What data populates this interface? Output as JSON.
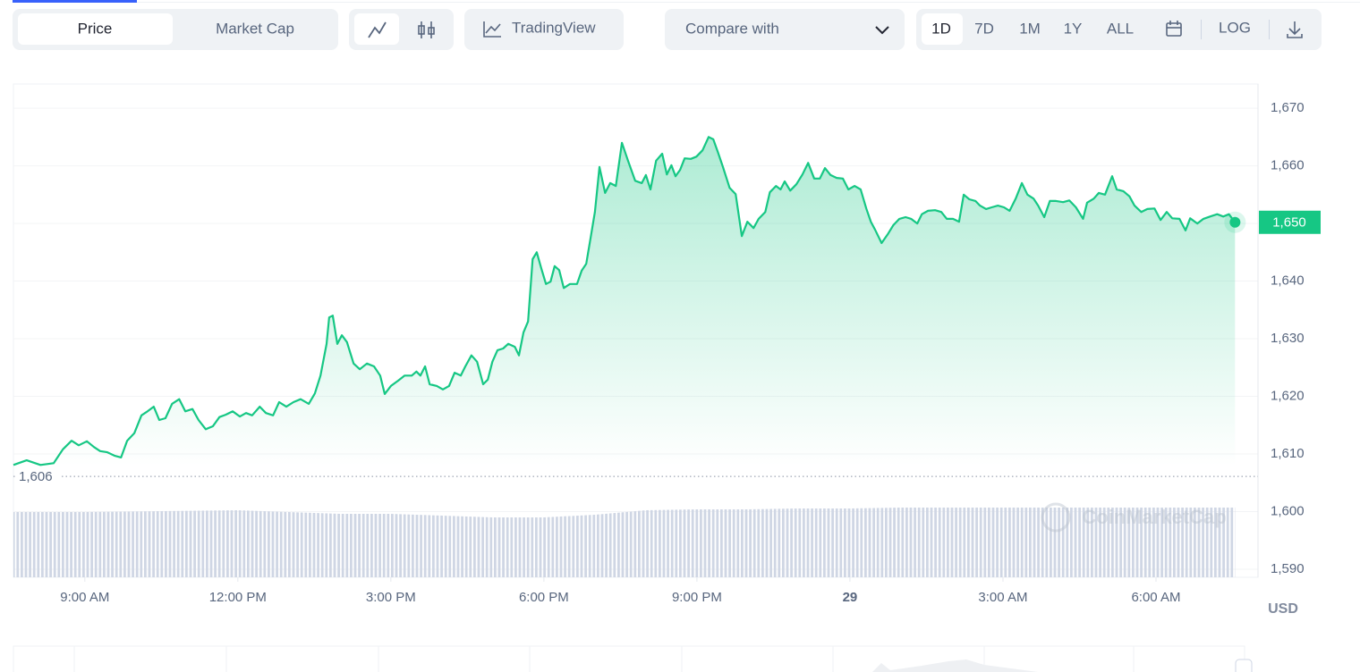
{
  "toolbar": {
    "tabs": [
      "Price",
      "Market Cap"
    ],
    "tradingview": "TradingView",
    "compare": "Compare with",
    "ranges": [
      "1D",
      "7D",
      "1M",
      "1Y",
      "ALL"
    ],
    "log": "LOG"
  },
  "chart_data": {
    "type": "area",
    "color": "#16c784",
    "watermark": "CoinMarketCap",
    "unit": "USD",
    "x": [
      7.6,
      7.86,
      8.13,
      8.39,
      8.57,
      8.74,
      8.88,
      9.04,
      9.18,
      9.3,
      9.44,
      9.58,
      9.71,
      9.83,
      9.97,
      10.11,
      10.23,
      10.35,
      10.46,
      10.58,
      10.71,
      10.85,
      10.97,
      11.11,
      11.23,
      11.37,
      11.51,
      11.64,
      11.76,
      11.9,
      12.04,
      12.16,
      12.28,
      12.43,
      12.55,
      12.69,
      12.81,
      12.95,
      13.09,
      13.23,
      13.39,
      13.51,
      13.62,
      13.74,
      13.79,
      13.86,
      13.95,
      14.04,
      14.14,
      14.27,
      14.39,
      14.53,
      14.67,
      14.79,
      14.88,
      15.0,
      15.14,
      15.27,
      15.41,
      15.5,
      15.58,
      15.67,
      15.76,
      15.9,
      16.02,
      16.14,
      16.25,
      16.37,
      16.46,
      16.58,
      16.69,
      16.81,
      16.9,
      16.99,
      17.09,
      17.2,
      17.3,
      17.43,
      17.51,
      17.6,
      17.69,
      17.78,
      17.86,
      17.95,
      18.04,
      18.13,
      18.21,
      18.3,
      18.39,
      18.51,
      18.65,
      18.74,
      18.83,
      18.92,
      19.0,
      19.09,
      19.2,
      19.3,
      19.41,
      19.53,
      19.65,
      19.79,
      19.92,
      20.0,
      20.09,
      20.2,
      20.32,
      20.41,
      20.5,
      20.58,
      20.67,
      20.76,
      20.88,
      20.99,
      21.11,
      21.23,
      21.32,
      21.41,
      21.51,
      21.64,
      21.76,
      21.88,
      21.99,
      22.11,
      22.21,
      22.34,
      22.43,
      22.55,
      22.64,
      22.72,
      22.83,
      22.95,
      23.07,
      23.18,
      23.3,
      23.41,
      23.51,
      23.62,
      23.74,
      23.86,
      23.97,
      24.09,
      24.21,
      24.32,
      24.41,
      24.5,
      24.62,
      24.74,
      24.85,
      24.97,
      25.09,
      25.2,
      25.32,
      25.41,
      25.53,
      25.67,
      25.79,
      25.9,
      26.02,
      26.14,
      26.23,
      26.34,
      26.46,
      26.55,
      26.67,
      26.78,
      26.9,
      27.02,
      27.13,
      27.25,
      27.37,
      27.48,
      27.6,
      27.69,
      27.81,
      27.92,
      28.04,
      28.18,
      28.3,
      28.43,
      28.57,
      28.65,
      28.78,
      28.88,
      29.0,
      29.14,
      29.23,
      29.36,
      29.48,
      29.58,
      29.71,
      29.83,
      29.97,
      30.09,
      30.21,
      30.32,
      30.46,
      30.58,
      30.67,
      30.81,
      30.93,
      31.06,
      31.2,
      31.32,
      31.43,
      31.55
    ],
    "values": [
      1608.1,
      1608.9,
      1608.1,
      1608.4,
      1610.8,
      1612.3,
      1611.5,
      1612.2,
      1611.2,
      1610.5,
      1610.3,
      1609.7,
      1609.4,
      1612.3,
      1613.6,
      1616.7,
      1617.4,
      1618.2,
      1615.9,
      1616.2,
      1618.7,
      1619.5,
      1617.4,
      1617.8,
      1615.9,
      1614.3,
      1614.8,
      1616.4,
      1616.8,
      1617.4,
      1616.5,
      1617.1,
      1616.7,
      1618.2,
      1617.1,
      1616.7,
      1619.0,
      1618.2,
      1619.0,
      1619.5,
      1618.7,
      1620.5,
      1623.6,
      1629.1,
      1633.7,
      1634.0,
      1629.1,
      1630.6,
      1629.4,
      1625.7,
      1624.7,
      1625.7,
      1625.2,
      1623.6,
      1620.4,
      1621.8,
      1622.7,
      1623.6,
      1623.6,
      1624.3,
      1623.6,
      1625.2,
      1622.1,
      1621.8,
      1621.2,
      1621.8,
      1624.1,
      1623.6,
      1625.2,
      1627.1,
      1626.0,
      1622.1,
      1622.9,
      1626.0,
      1628.0,
      1628.3,
      1629.1,
      1628.6,
      1627.1,
      1631.1,
      1633.0,
      1643.8,
      1645.0,
      1642.2,
      1639.5,
      1639.9,
      1642.6,
      1641.9,
      1638.8,
      1639.5,
      1639.5,
      1641.8,
      1643.0,
      1647.7,
      1652.0,
      1659.8,
      1655.3,
      1657.0,
      1656.5,
      1664.0,
      1660.9,
      1657.4,
      1657.0,
      1658.4,
      1655.9,
      1660.9,
      1662.1,
      1658.5,
      1660.1,
      1658.2,
      1659.3,
      1661.3,
      1661.2,
      1661.6,
      1662.7,
      1665.0,
      1664.6,
      1662.4,
      1659.8,
      1656.2,
      1655.1,
      1647.8,
      1650.3,
      1649.2,
      1650.8,
      1652.0,
      1655.4,
      1656.5,
      1655.9,
      1657.3,
      1655.7,
      1656.8,
      1658.5,
      1660.5,
      1657.8,
      1657.8,
      1659.6,
      1658.4,
      1657.9,
      1657.8,
      1655.9,
      1656.5,
      1655.9,
      1652.6,
      1650.3,
      1648.8,
      1646.6,
      1648.1,
      1649.7,
      1650.8,
      1651.1,
      1650.8,
      1650.0,
      1651.6,
      1652.2,
      1652.3,
      1652.0,
      1650.8,
      1650.8,
      1650.3,
      1655.0,
      1654.2,
      1653.9,
      1653.1,
      1652.5,
      1652.8,
      1653.1,
      1652.8,
      1652.2,
      1654.3,
      1657.0,
      1655.0,
      1654.3,
      1653.1,
      1651.1,
      1653.9,
      1653.9,
      1653.7,
      1654.0,
      1652.8,
      1650.8,
      1653.6,
      1654.3,
      1655.3,
      1655.0,
      1658.2,
      1655.9,
      1655.6,
      1654.7,
      1653.1,
      1652.0,
      1652.5,
      1652.6,
      1650.6,
      1652.0,
      1650.9,
      1650.8,
      1648.8,
      1650.9,
      1650.0,
      1650.8,
      1651.2,
      1651.6,
      1651.2,
      1651.6,
      1650.2
    ],
    "current_price": {
      "value": 1650.2,
      "label": "1,650"
    },
    "reference_line": {
      "value": 1606.1,
      "label": "1,606"
    },
    "volume": {
      "color": "#cfd6e4",
      "x": [
        7.6,
        9,
        10.5,
        12,
        13,
        14,
        15,
        16,
        17,
        18,
        19,
        20,
        21,
        22,
        23,
        24,
        25,
        26,
        27,
        28,
        29,
        30,
        31,
        31.55
      ],
      "values": [
        73,
        73,
        74,
        75,
        73,
        71,
        71,
        69,
        67,
        67,
        70,
        75,
        76,
        76,
        77,
        77,
        78,
        78,
        78,
        78,
        78,
        78,
        78,
        78
      ]
    },
    "xlim": [
      7.6,
      32.0
    ],
    "xticks": [
      {
        "value": 9,
        "label": "9:00 AM"
      },
      {
        "value": 12,
        "label": "12:00 PM"
      },
      {
        "value": 15,
        "label": "3:00 PM"
      },
      {
        "value": 18,
        "label": "6:00 PM"
      },
      {
        "value": 21,
        "label": "9:00 PM"
      },
      {
        "value": 24,
        "label": "29",
        "bold": true
      },
      {
        "value": 27,
        "label": "3:00 AM"
      },
      {
        "value": 30,
        "label": "6:00 AM"
      }
    ],
    "ylim": [
      1588.6,
      1674.2
    ],
    "yticks": [
      {
        "value": 1590,
        "label": "1,590"
      },
      {
        "value": 1600,
        "label": "1,600"
      },
      {
        "value": 1610,
        "label": "1,610"
      },
      {
        "value": 1620,
        "label": "1,620"
      },
      {
        "value": 1630,
        "label": "1,630"
      },
      {
        "value": 1640,
        "label": "1,640"
      },
      {
        "value": 1650,
        "label": "1,650"
      },
      {
        "value": 1660,
        "label": "1,660"
      },
      {
        "value": 1670,
        "label": "1,670"
      }
    ],
    "grid": true
  }
}
